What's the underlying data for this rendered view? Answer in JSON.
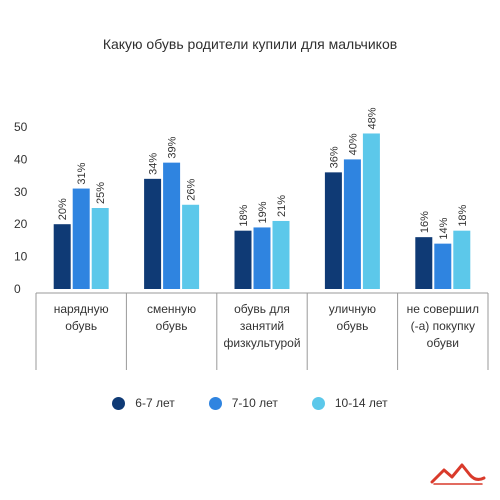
{
  "chart_data": {
    "type": "bar",
    "title": "Какую обувь родители купили для мальчиков",
    "categories": [
      [
        "нарядную",
        "обувь"
      ],
      [
        "сменную",
        "обувь"
      ],
      [
        "обувь для",
        "занятий",
        "физкультурой"
      ],
      [
        "уличную",
        "обувь"
      ],
      [
        "не совершил",
        "(-а) покупку",
        "обуви"
      ]
    ],
    "series": [
      {
        "name": "6-7 лет",
        "color": "#0f3a75",
        "values": [
          20,
          34,
          18,
          36,
          16
        ]
      },
      {
        "name": "7-10 лет",
        "color": "#2f84e0",
        "values": [
          31,
          39,
          19,
          40,
          14
        ]
      },
      {
        "name": "10-14 лет",
        "color": "#5cc8ea",
        "values": [
          25,
          26,
          21,
          48,
          18
        ]
      }
    ],
    "value_suffix": "%",
    "y_ticks": [
      0,
      10,
      20,
      30,
      40,
      50
    ],
    "ylim": [
      0,
      55
    ],
    "grid": false,
    "legend_position": "bottom",
    "logo_icon": "red-wave-logo-icon"
  }
}
